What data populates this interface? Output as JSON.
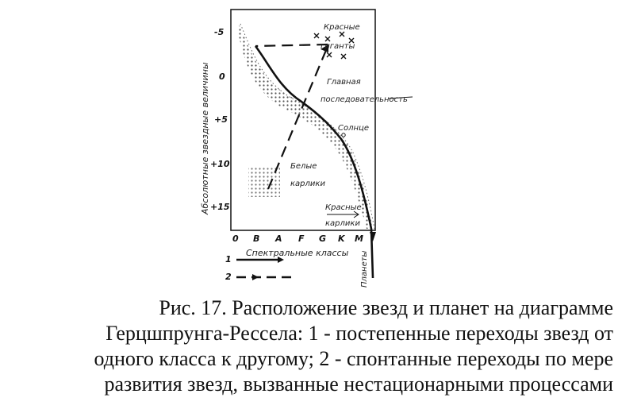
{
  "diagram": {
    "y_axis_label": "Абсолютные звездные величины",
    "x_axis_label": "Спектральные классы",
    "y_ticks": [
      "-5",
      "0",
      "+5",
      "+10",
      "+15"
    ],
    "x_ticks": [
      "0",
      "B",
      "A",
      "F",
      "G",
      "K",
      "M"
    ],
    "regions": {
      "red_giants": [
        "Красные",
        "гиганты"
      ],
      "main_sequence": [
        "Главная",
        "последовательность"
      ],
      "sun": "Солнце",
      "white_dwarfs": [
        "Белые",
        "карлики"
      ],
      "red_dwarfs": [
        "Красные",
        "карлики"
      ],
      "planets": "Планеты"
    },
    "legend": [
      {
        "key": "1",
        "style": "solid"
      },
      {
        "key": "2",
        "style": "dashed"
      }
    ]
  },
  "caption_lines": [
    "Рис. 17. Расположение звезд и планет на диаграмме",
    "Герцшпрунга-Рессела: 1 - постепенные переходы звезд от",
    "одного класса к другому; 2 - спонтанные переходы по мере",
    "развития звезд, вызванные нестационарными процессами"
  ]
}
